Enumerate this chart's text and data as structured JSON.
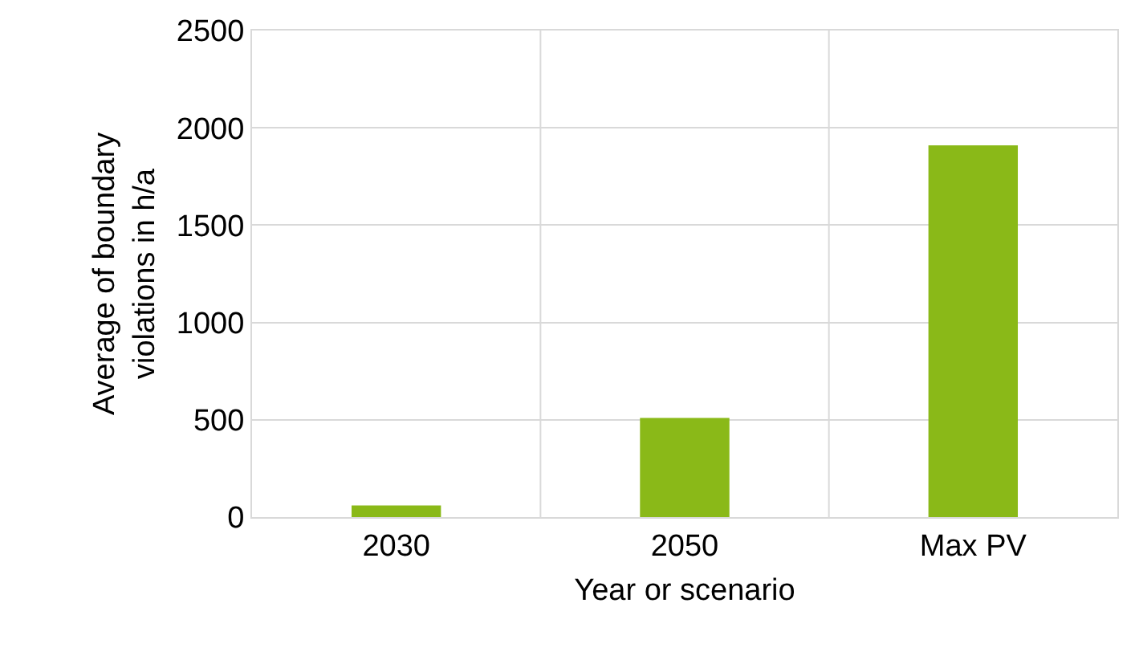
{
  "chart_data": {
    "type": "bar",
    "xlabel": "Year or scenario",
    "ylabel": "Average of boundary\nviolations in h/a",
    "categories": [
      "2030",
      "2050",
      "Max PV"
    ],
    "values": [
      60,
      510,
      1910
    ],
    "color": "#8ab918",
    "ylim": [
      0,
      2500
    ],
    "yticks": [
      0,
      500,
      1000,
      1500,
      2000,
      2500
    ],
    "grid": true
  }
}
